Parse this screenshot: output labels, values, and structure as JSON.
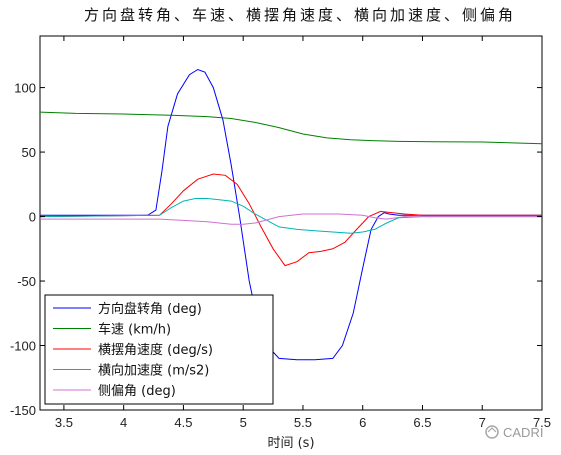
{
  "chart_data": {
    "type": "line",
    "title": "方向盘转角、车速、横摆角速度、横向加速度、侧偏角",
    "xlabel": "时间 (s)",
    "ylabel": "",
    "xlim": [
      3.3,
      7.5
    ],
    "ylim": [
      -150,
      140
    ],
    "xticks": [
      3.5,
      4,
      4.5,
      5,
      5.5,
      6,
      6.5,
      7,
      7.5
    ],
    "xtick_labels": [
      "3.5",
      "4",
      "4.5",
      "5",
      "5.5",
      "6",
      "6.5",
      "7",
      "7.5"
    ],
    "yticks": [
      -150,
      -100,
      -50,
      0,
      50,
      100
    ],
    "ytick_labels": [
      "-150",
      "-100",
      "-50",
      "0",
      "50",
      "100"
    ],
    "grid": false,
    "legend_position": "bottom-left",
    "watermark": "CADRI",
    "series": [
      {
        "name": "方向盘转角 (deg)",
        "color": "#0000ff",
        "x": [
          3.3,
          4.2,
          4.27,
          4.32,
          4.37,
          4.45,
          4.55,
          4.62,
          4.68,
          4.75,
          4.83,
          4.9,
          4.97,
          5.05,
          5.13,
          5.2,
          5.3,
          5.45,
          5.6,
          5.75,
          5.83,
          5.92,
          6.0,
          6.07,
          6.13,
          6.18,
          6.22,
          6.3,
          6.4,
          6.6,
          7.0,
          7.5
        ],
        "y": [
          1,
          1,
          5,
          35,
          70,
          95,
          110,
          114,
          112,
          100,
          75,
          40,
          0,
          -50,
          -85,
          -100,
          -110,
          -111,
          -111,
          -110,
          -100,
          -75,
          -40,
          -10,
          0,
          3,
          2,
          1,
          1,
          1,
          1,
          1
        ]
      },
      {
        "name": "车速 (km/h)",
        "color": "#008000",
        "x": [
          3.3,
          3.6,
          4.0,
          4.4,
          4.7,
          4.9,
          5.1,
          5.3,
          5.5,
          5.7,
          5.9,
          6.1,
          6.3,
          6.6,
          7.0,
          7.5
        ],
        "y": [
          81,
          80,
          79.5,
          78.5,
          77.5,
          76,
          73,
          69,
          64,
          61,
          59.5,
          58.8,
          58.3,
          58,
          57.8,
          56.5
        ]
      },
      {
        "name": "横摆角速度 (deg/s)",
        "color": "#ff0000",
        "x": [
          3.3,
          4.3,
          4.4,
          4.5,
          4.62,
          4.75,
          4.85,
          4.95,
          5.05,
          5.15,
          5.25,
          5.35,
          5.45,
          5.55,
          5.65,
          5.75,
          5.85,
          5.95,
          6.05,
          6.15,
          6.25,
          6.35,
          6.5,
          7.0,
          7.5
        ],
        "y": [
          0,
          1,
          10,
          20,
          29,
          33,
          32,
          25,
          10,
          -8,
          -25,
          -38,
          -35,
          -28,
          -27,
          -25,
          -20,
          -10,
          0,
          4,
          3,
          2,
          1,
          1,
          1
        ]
      },
      {
        "name": "横向加速度 (m/s2)",
        "color": "#00b5b5",
        "x": [
          3.3,
          4.3,
          4.4,
          4.5,
          4.6,
          4.7,
          4.8,
          4.9,
          5.0,
          5.1,
          5.2,
          5.3,
          5.45,
          5.6,
          5.75,
          5.9,
          6.0,
          6.1,
          6.2,
          6.3,
          6.5,
          7.0,
          7.5
        ],
        "y": [
          0,
          1,
          7,
          12,
          14,
          14,
          13,
          12,
          8,
          2,
          -3,
          -8,
          -10,
          -11,
          -12,
          -13,
          -12,
          -10,
          -5,
          -1,
          0,
          0,
          0
        ]
      },
      {
        "name": "侧偏角 (deg)",
        "color": "#d070d0",
        "x": [
          3.3,
          4.3,
          4.5,
          4.7,
          4.9,
          5.0,
          5.1,
          5.3,
          5.5,
          5.8,
          6.0,
          6.1,
          6.2,
          6.35,
          6.5,
          7.0,
          7.5
        ],
        "y": [
          -2,
          -2,
          -3,
          -4,
          -6,
          -6,
          -5,
          0,
          2,
          2,
          1,
          -1,
          -2,
          0,
          0,
          0,
          0
        ]
      }
    ]
  }
}
